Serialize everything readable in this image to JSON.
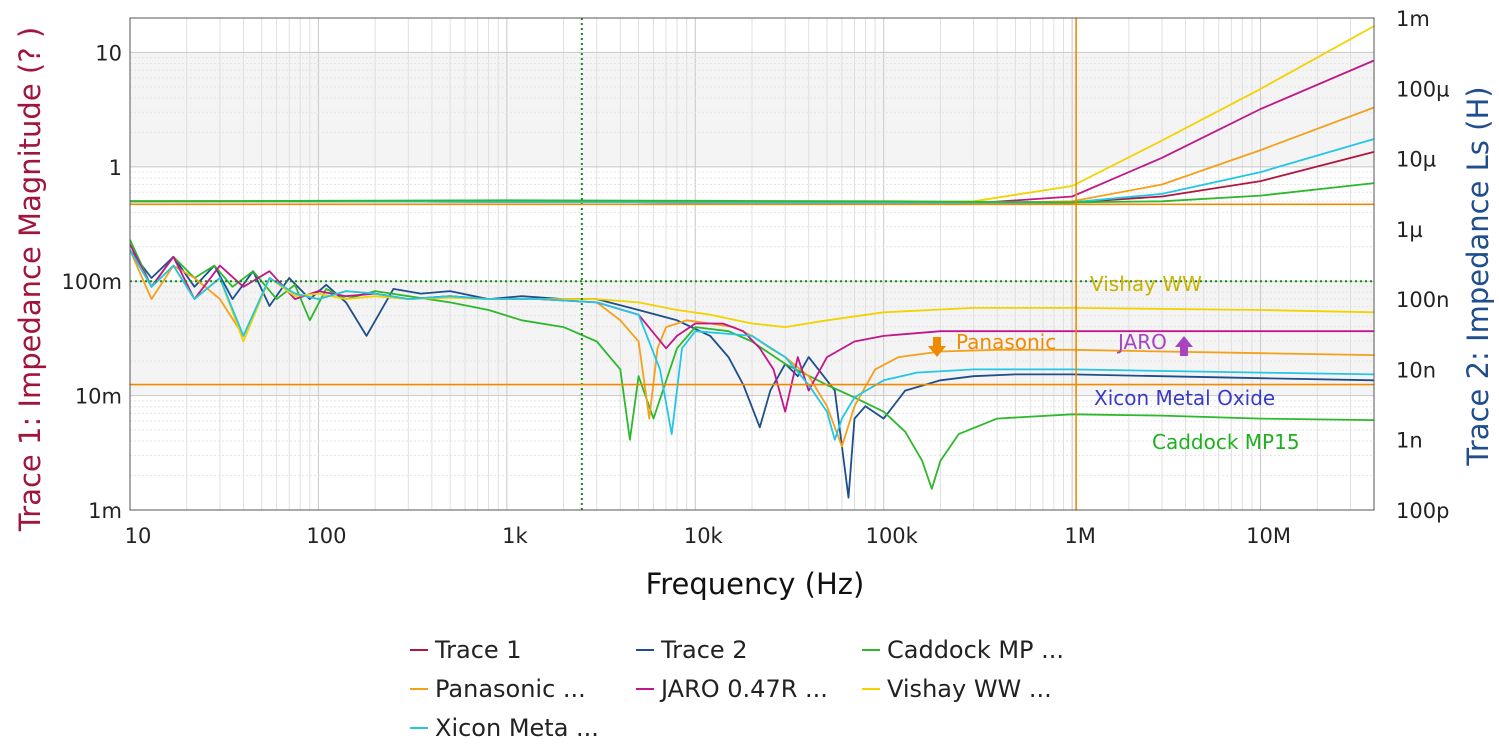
{
  "chart_data": {
    "type": "line",
    "xlabel": "Frequency (Hz)",
    "ylabel_left": "Trace 1: Impedance Magnitude (? )",
    "ylabel_right": "Trace 2: Impedance Ls (H)",
    "x_scale": "log",
    "xlim": [
      10,
      40000000
    ],
    "ylim_left": [
      0.001,
      20
    ],
    "ylim_right": [
      1e-10,
      0.001
    ],
    "grid": true,
    "x_ticks": [
      {
        "value": 10,
        "label": "10"
      },
      {
        "value": 100,
        "label": "100"
      },
      {
        "value": 1000,
        "label": "1k"
      },
      {
        "value": 10000,
        "label": "10k"
      },
      {
        "value": 100000,
        "label": "100k"
      },
      {
        "value": 1000000,
        "label": "1M"
      },
      {
        "value": 10000000,
        "label": "10M"
      }
    ],
    "y_left_ticks": [
      {
        "value": 0.001,
        "label": "1m"
      },
      {
        "value": 0.01,
        "label": "10m"
      },
      {
        "value": 0.1,
        "label": "100m"
      },
      {
        "value": 1,
        "label": "1"
      },
      {
        "value": 10,
        "label": "10"
      }
    ],
    "y_right_ticks": [
      {
        "value": 1e-10,
        "label": "100p"
      },
      {
        "value": 1e-09,
        "label": "1n"
      },
      {
        "value": 1e-08,
        "label": "10n"
      },
      {
        "value": 1e-07,
        "label": "100n"
      },
      {
        "value": 1e-06,
        "label": "1µ"
      },
      {
        "value": 1e-05,
        "label": "10µ"
      },
      {
        "value": 0.0001,
        "label": "100µ"
      },
      {
        "value": 0.001,
        "label": "1m"
      }
    ],
    "cursor_lines": [
      {
        "orientation": "vertical",
        "axis": "x",
        "value": 2500,
        "color": "#1a8a1a",
        "style": "dotted"
      },
      {
        "orientation": "horizontal",
        "axis": "left",
        "value": 0.1,
        "color": "#1a8a1a",
        "style": "dotted"
      },
      {
        "orientation": "vertical",
        "axis": "x",
        "value": 1050000,
        "color": "#f08a00",
        "style": "solid"
      },
      {
        "orientation": "horizontal",
        "axis": "left",
        "value": 0.47,
        "color": "#f08a00",
        "style": "solid"
      },
      {
        "orientation": "horizontal",
        "axis": "left",
        "value": 0.0125,
        "color": "#f08a00",
        "style": "solid"
      }
    ],
    "series": [
      {
        "name": "Trace 1",
        "color": "#b0163e",
        "legend_label": "Trace 1",
        "axis": "left",
        "x": [
          10,
          100,
          1000,
          10000,
          100000,
          300000,
          1000000,
          3000000,
          10000000,
          40000000
        ],
        "y": [
          0.5,
          0.5,
          0.495,
          0.49,
          0.485,
          0.48,
          0.49,
          0.55,
          0.75,
          1.35
        ]
      },
      {
        "name": "Trace 2",
        "color": "#1f4e8c",
        "legend_label": "Trace 2",
        "axis": "right",
        "x": [
          10,
          13,
          17,
          22,
          28,
          35,
          45,
          55,
          70,
          90,
          110,
          140,
          180,
          250,
          350,
          500,
          800,
          1200,
          2000,
          3000,
          5000,
          8000,
          12000,
          15000,
          18000,
          22000,
          25000,
          30000,
          35000,
          40000,
          45000,
          55000,
          65000,
          70000,
          80000,
          100000,
          130000,
          200000,
          300000,
          500000,
          1000000,
          3000000,
          10000000,
          40000000
        ],
        "y": [
          5e-07,
          2e-07,
          4e-07,
          1.5e-07,
          3e-07,
          1e-07,
          2.5e-07,
          8e-08,
          2e-07,
          1e-07,
          1.6e-07,
          9e-08,
          3e-08,
          1.4e-07,
          1.2e-07,
          1.3e-07,
          1e-07,
          1.1e-07,
          1e-07,
          1e-07,
          7e-08,
          5e-08,
          3e-08,
          1.5e-08,
          6e-09,
          1.5e-09,
          5e-09,
          1.2e-08,
          8e-09,
          1.5e-08,
          1e-08,
          5e-09,
          1.5e-10,
          2e-09,
          3e-09,
          2e-09,
          5e-09,
          7e-09,
          8e-09,
          8.5e-09,
          8.5e-09,
          8e-09,
          7.5e-09,
          7e-09
        ]
      },
      {
        "name": "Caddock MP ...",
        "color": "#2db82d",
        "legend_label": "Caddock MP ...",
        "axis": "right",
        "x": [
          10,
          13,
          17,
          22,
          28,
          35,
          45,
          60,
          75,
          90,
          110,
          140,
          200,
          300,
          500,
          800,
          1200,
          2000,
          3000,
          4000,
          4500,
          5000,
          6000,
          8000,
          10000,
          15000,
          20000,
          30000,
          50000,
          70000,
          100000,
          130000,
          160000,
          180000,
          200000,
          250000,
          400000,
          1000000,
          3000000,
          10000000,
          40000000
        ],
        "y": [
          7e-07,
          1.5e-07,
          4e-07,
          2e-07,
          3e-07,
          1.5e-07,
          2.5e-07,
          1e-07,
          1.6e-07,
          5e-08,
          1.4e-07,
          1e-07,
          1.3e-07,
          1.1e-07,
          9e-08,
          7e-08,
          5e-08,
          4e-08,
          2.5e-08,
          1e-08,
          1e-09,
          8e-09,
          2e-09,
          2e-08,
          4e-08,
          3.5e-08,
          2.5e-08,
          1.2e-08,
          6e-09,
          4e-09,
          2.5e-09,
          1.3e-09,
          5e-10,
          2e-10,
          5e-10,
          1.2e-09,
          2e-09,
          2.3e-09,
          2.2e-09,
          2e-09,
          1.9e-09
        ]
      },
      {
        "name": "Panasonic  ...",
        "color": "#f5a01a",
        "legend_label": "Panasonic  ...",
        "axis": "left",
        "x": [
          10,
          100,
          1000,
          10000,
          100000,
          300000,
          1000000,
          3000000,
          10000000,
          40000000
        ],
        "y": [
          0.5,
          0.5,
          0.495,
          0.49,
          0.485,
          0.48,
          0.5,
          0.7,
          1.4,
          3.3
        ]
      },
      {
        "name": "JARO 0.47R ...",
        "color": "#c0178a",
        "legend_label": "JARO 0.47R ...",
        "axis": "left",
        "x": [
          10,
          100,
          1000,
          10000,
          100000,
          300000,
          1000000,
          3000000,
          10000000,
          40000000
        ],
        "y": [
          0.5,
          0.5,
          0.495,
          0.49,
          0.485,
          0.48,
          0.55,
          1.2,
          3.2,
          8.5
        ]
      },
      {
        "name": "Vishay WW  ...",
        "color": "#f2d300",
        "legend_label": "Vishay WW  ...",
        "axis": "left",
        "x": [
          10,
          100,
          1000,
          10000,
          100000,
          300000,
          1000000,
          3000000,
          10000000,
          40000000
        ],
        "y": [
          0.5,
          0.5,
          0.495,
          0.49,
          0.485,
          0.5,
          0.68,
          1.7,
          4.8,
          17
        ]
      },
      {
        "name": "Xicon Meta ...",
        "color": "#22c6e6",
        "legend_label": "Xicon Meta ...",
        "axis": "left",
        "x": [
          10,
          100,
          1000,
          10000,
          100000,
          300000,
          1000000,
          3000000,
          10000000,
          40000000
        ],
        "y": [
          0.5,
          0.5,
          0.495,
          0.49,
          0.485,
          0.48,
          0.49,
          0.58,
          0.9,
          1.75
        ]
      },
      {
        "name": "Caddock MP15 (|Z|)",
        "color": "#2db82d",
        "axis": "left",
        "x": [
          10,
          100,
          1000,
          10000,
          100000,
          300000,
          1000000,
          3000000,
          10000000,
          40000000
        ],
        "y": [
          0.5,
          0.505,
          0.51,
          0.505,
          0.5,
          0.495,
          0.49,
          0.5,
          0.56,
          0.72
        ]
      },
      {
        "name": "Panasonic (Ls)",
        "color": "#f5a01a",
        "axis": "right",
        "x": [
          10,
          13,
          17,
          22,
          30,
          40,
          55,
          75,
          100,
          140,
          200,
          300,
          500,
          800,
          1500,
          3000,
          4000,
          5000,
          5700,
          6300,
          7000,
          9000,
          12000,
          16000,
          20000,
          25000,
          30000,
          40000,
          50000,
          60000,
          70000,
          90000,
          120000,
          200000,
          400000,
          1000000,
          3000000,
          10000000,
          40000000
        ],
        "y": [
          5e-07,
          1e-07,
          3e-07,
          2e-07,
          1e-07,
          3e-08,
          2e-07,
          1.2e-07,
          1e-07,
          1.3e-07,
          1.2e-07,
          1e-07,
          1.1e-07,
          1e-07,
          1e-07,
          9e-08,
          5e-08,
          2.5e-08,
          2e-09,
          2e-08,
          4e-08,
          5e-08,
          4.5e-08,
          4e-08,
          3e-08,
          2e-08,
          1.5e-08,
          8e-09,
          3e-09,
          8e-10,
          3e-09,
          1e-08,
          1.5e-08,
          1.8e-08,
          1.9e-08,
          1.9e-08,
          1.8e-08,
          1.7e-08,
          1.6e-08
        ]
      },
      {
        "name": "JARO (Ls)",
        "color": "#c0178a",
        "axis": "right",
        "x": [
          10,
          13,
          17,
          22,
          30,
          40,
          55,
          75,
          100,
          140,
          200,
          300,
          500,
          800,
          1500,
          3000,
          5000,
          7000,
          8000,
          10000,
          14000,
          18000,
          22000,
          26000,
          30000,
          35000,
          40000,
          50000,
          70000,
          100000,
          200000,
          1000000,
          10000000,
          40000000
        ],
        "y": [
          6e-07,
          1.5e-07,
          4e-07,
          1e-07,
          3e-07,
          1.5e-07,
          2.5e-07,
          1e-07,
          1.3e-07,
          1.1e-07,
          1.2e-07,
          1e-07,
          1.1e-07,
          1e-07,
          1e-07,
          9e-08,
          6e-08,
          2e-08,
          3e-08,
          4.5e-08,
          4.5e-08,
          3.5e-08,
          2e-08,
          1e-08,
          2.5e-09,
          1.5e-08,
          5e-09,
          1.5e-08,
          2.5e-08,
          3e-08,
          3.5e-08,
          3.5e-08,
          3.5e-08,
          3.5e-08
        ]
      },
      {
        "name": "Vishay WW (Ls)",
        "color": "#f2d300",
        "axis": "right",
        "x": [
          10,
          13,
          17,
          22,
          30,
          40,
          55,
          75,
          100,
          140,
          200,
          300,
          500,
          800,
          1500,
          3000,
          5000,
          8000,
          12000,
          20000,
          30000,
          50000,
          100000,
          300000,
          1000000,
          10000000,
          40000000
        ],
        "y": [
          5e-07,
          1.5e-07,
          3e-07,
          1e-07,
          2e-07,
          2.5e-08,
          2e-07,
          1.1e-07,
          1.2e-07,
          1e-07,
          1.1e-07,
          1e-07,
          1.05e-07,
          1e-07,
          1e-07,
          1e-07,
          9e-08,
          7e-08,
          6e-08,
          4.5e-08,
          4e-08,
          5e-08,
          6.5e-08,
          7.5e-08,
          7.5e-08,
          7e-08,
          6.5e-08
        ]
      },
      {
        "name": "Xicon Metal Oxide (Ls)",
        "color": "#22c6e6",
        "axis": "right",
        "x": [
          10,
          13,
          17,
          22,
          30,
          40,
          55,
          75,
          100,
          140,
          200,
          300,
          500,
          800,
          1500,
          3000,
          5000,
          6500,
          7500,
          8500,
          10000,
          15000,
          20000,
          30000,
          40000,
          50000,
          55000,
          60000,
          70000,
          100000,
          150000,
          300000,
          1000000,
          10000000,
          40000000
        ],
        "y": [
          5e-07,
          1.5e-07,
          3e-07,
          1e-07,
          2e-07,
          3e-08,
          2e-07,
          1.2e-07,
          1e-07,
          1.3e-07,
          1.2e-07,
          1e-07,
          1.1e-07,
          1e-07,
          1e-07,
          9e-08,
          6e-08,
          1e-08,
          1.2e-09,
          2e-08,
          3.5e-08,
          3.2e-08,
          3e-08,
          1.5e-08,
          6e-09,
          2.5e-09,
          1e-09,
          2e-09,
          4e-09,
          7e-09,
          9e-09,
          1e-08,
          1e-08,
          9e-09,
          8.5e-09
        ]
      }
    ],
    "annotations": [
      {
        "text": "Vishay WW",
        "color": "#c8b400"
      },
      {
        "text": "Panasonic",
        "color": "#f08a00"
      },
      {
        "text": "JARO",
        "color": "#a844c0"
      },
      {
        "text": "Xicon Metal Oxide",
        "color": "#3a3ac8"
      },
      {
        "text": "Caddock MP15",
        "color": "#1fb01f"
      }
    ]
  }
}
